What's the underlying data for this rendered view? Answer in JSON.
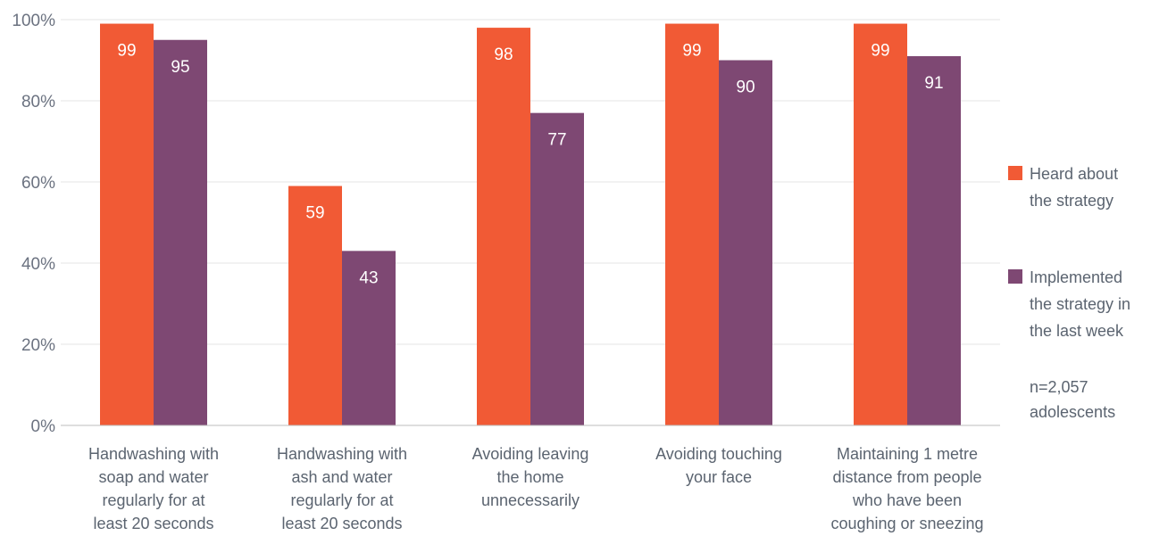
{
  "chart_data": {
    "type": "bar",
    "categories": [
      [
        "Handwashing with",
        "soap and water",
        "regularly for at",
        "least 20 seconds"
      ],
      [
        "Handwashing with",
        "ash and water",
        "regularly for at",
        "least 20 seconds"
      ],
      [
        "Avoiding leaving",
        "the home",
        "unnecessarily"
      ],
      [
        "Avoiding touching",
        "your face"
      ],
      [
        "Maintaining 1 metre",
        "distance from people",
        "who have been",
        "coughing or sneezing"
      ]
    ],
    "series": [
      {
        "name": [
          "Heard about",
          "the strategy"
        ],
        "color": "#f15a35",
        "values": [
          99,
          59,
          98,
          99,
          99
        ]
      },
      {
        "name": [
          "Implemented",
          "the strategy in",
          "the last week"
        ],
        "color": "#7e4873",
        "values": [
          95,
          43,
          77,
          90,
          91
        ]
      }
    ],
    "yticks": [
      "0%",
      "20%",
      "40%",
      "60%",
      "80%",
      "100%"
    ],
    "ylim": [
      0,
      100
    ],
    "grid": true,
    "legend_position": "right",
    "note": [
      "n=2,057",
      "adolescents"
    ]
  }
}
